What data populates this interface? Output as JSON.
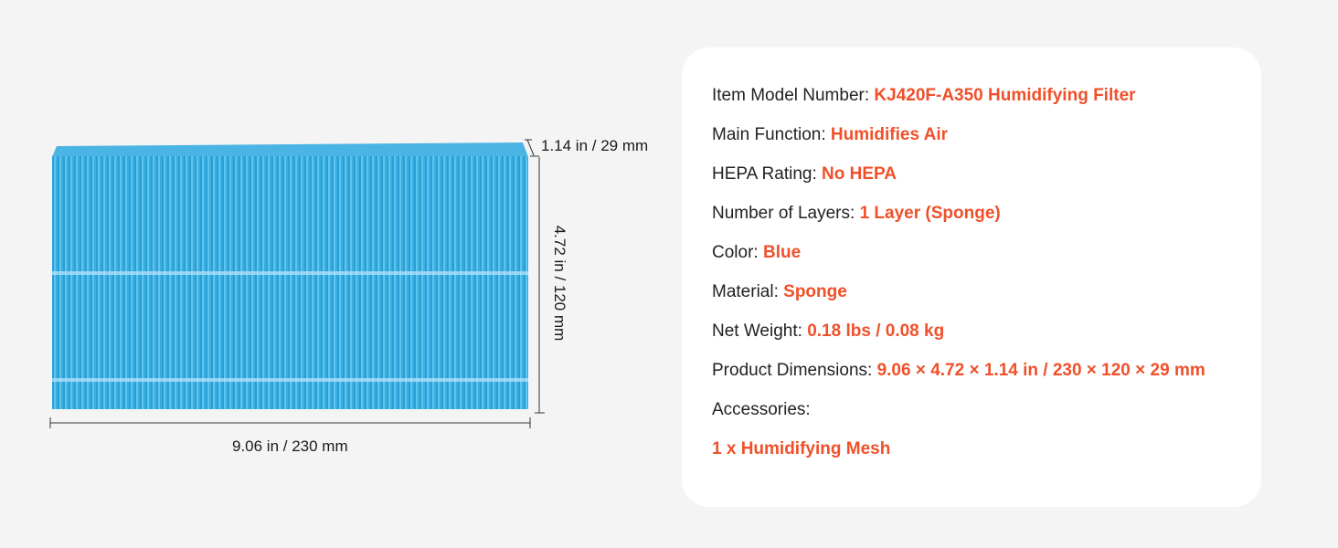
{
  "dimensions": {
    "depth": "1.14 in / 29 mm",
    "height": "4.72 in / 120 mm",
    "width": "9.06 in / 230 mm"
  },
  "specs": [
    {
      "label": "Item Model Number: ",
      "value": "KJ420F-A350 Humidifying Filter"
    },
    {
      "label": "Main Function: ",
      "value": "Humidifies Air"
    },
    {
      "label": "HEPA Rating: ",
      "value": "No HEPA"
    },
    {
      "label": "Number of Layers: ",
      "value": "1 Layer (Sponge)"
    },
    {
      "label": "Color: ",
      "value": "Blue"
    },
    {
      "label": "Material: ",
      "value": "Sponge"
    },
    {
      "label": "Net Weight: ",
      "value": "0.18 lbs / 0.08 kg"
    },
    {
      "label": "Product Dimensions: ",
      "value": "9.06 × 4.72 × 1.14 in / 230 × 120 × 29 mm"
    },
    {
      "label": "Accessories:",
      "value": ""
    },
    {
      "label": "",
      "value": "1 x Humidifying Mesh"
    }
  ],
  "colors": {
    "accent": "#f0502a",
    "filter": "#3aaee2"
  }
}
